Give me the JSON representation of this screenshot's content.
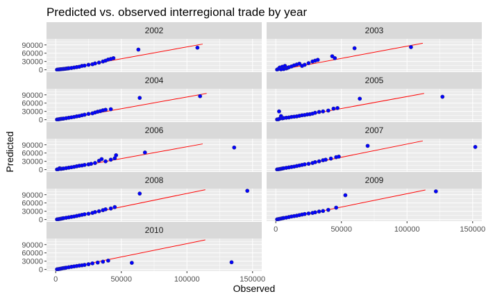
{
  "chart_data": {
    "type": "scatter",
    "title": "Predicted vs. observed interregional trade by year",
    "xlabel": "Observed",
    "ylabel": "Predicted",
    "x_ticks": [
      0,
      50000,
      100000,
      150000
    ],
    "x_tick_labels": [
      "0",
      "50000",
      "100000",
      "150000"
    ],
    "y_ticks": [
      0,
      30000,
      60000,
      90000
    ],
    "y_tick_labels": [
      "0",
      "30000",
      "60000",
      "90000"
    ],
    "xlim": [
      -7000,
      157000
    ],
    "ylim": [
      -6000,
      112000
    ],
    "grid": true,
    "colors": {
      "point_fill": "#0000ff",
      "point_stroke": "#2b2b8a",
      "fit_line": "#ff0000",
      "strip_bg": "#d9d9d9",
      "panel_bg": "#ebebeb",
      "grid": "#ffffff",
      "text": "#000000",
      "tick_text": "#4d4d4d"
    },
    "panels": [
      {
        "label": "2002",
        "fit": [
          [
            0,
            -3000
          ],
          [
            112000,
            93000
          ]
        ],
        "points": [
          [
            1000,
            300
          ],
          [
            2000,
            800
          ],
          [
            3000,
            1500
          ],
          [
            4000,
            2000
          ],
          [
            5000,
            2500
          ],
          [
            6000,
            3000
          ],
          [
            7000,
            3500
          ],
          [
            8000,
            4200
          ],
          [
            9000,
            4800
          ],
          [
            10000,
            5500
          ],
          [
            12000,
            6500
          ],
          [
            14000,
            8000
          ],
          [
            16000,
            9500
          ],
          [
            18000,
            11000
          ],
          [
            20000,
            14000
          ],
          [
            22000,
            15000
          ],
          [
            25000,
            18000
          ],
          [
            28000,
            20000
          ],
          [
            30000,
            23000
          ],
          [
            33000,
            26000
          ],
          [
            36000,
            30000
          ],
          [
            38000,
            33000
          ],
          [
            40000,
            37000
          ],
          [
            42000,
            39000
          ],
          [
            44000,
            42000
          ],
          [
            63000,
            73000
          ],
          [
            108000,
            80000
          ]
        ]
      },
      {
        "label": "2003",
        "fit": [
          [
            0,
            -3000
          ],
          [
            112000,
            96000
          ]
        ],
        "points": [
          [
            1000,
            500
          ],
          [
            2000,
            3000
          ],
          [
            3000,
            8000
          ],
          [
            4000,
            1500
          ],
          [
            5000,
            11000
          ],
          [
            6000,
            2500
          ],
          [
            7000,
            14000
          ],
          [
            8000,
            5000
          ],
          [
            9000,
            7000
          ],
          [
            10000,
            9000
          ],
          [
            12000,
            12000
          ],
          [
            14000,
            16000
          ],
          [
            16000,
            19000
          ],
          [
            18000,
            22000
          ],
          [
            20000,
            14000
          ],
          [
            22000,
            18000
          ],
          [
            25000,
            24000
          ],
          [
            28000,
            30000
          ],
          [
            30000,
            33000
          ],
          [
            32000,
            36000
          ],
          [
            43000,
            49000
          ],
          [
            45000,
            42000
          ],
          [
            60000,
            78000
          ],
          [
            103000,
            82000
          ]
        ]
      },
      {
        "label": "2004",
        "fit": [
          [
            0,
            -3000
          ],
          [
            115000,
            95000
          ]
        ],
        "points": [
          [
            1000,
            500
          ],
          [
            2000,
            1000
          ],
          [
            3000,
            2000
          ],
          [
            4000,
            3000
          ],
          [
            5000,
            3500
          ],
          [
            6000,
            4000
          ],
          [
            8000,
            5500
          ],
          [
            10000,
            7000
          ],
          [
            12000,
            8500
          ],
          [
            14000,
            10000
          ],
          [
            16000,
            12000
          ],
          [
            18000,
            13500
          ],
          [
            20000,
            16000
          ],
          [
            22000,
            18000
          ],
          [
            25000,
            21000
          ],
          [
            28000,
            23000
          ],
          [
            30000,
            26000
          ],
          [
            32000,
            29000
          ],
          [
            34000,
            31000
          ],
          [
            36000,
            34000
          ],
          [
            38000,
            36000
          ],
          [
            42000,
            38000
          ],
          [
            64000,
            79000
          ],
          [
            110000,
            85000
          ]
        ]
      },
      {
        "label": "2005",
        "fit": [
          [
            0,
            -3000
          ],
          [
            113000,
            95000
          ]
        ],
        "points": [
          [
            1000,
            800
          ],
          [
            2000,
            1500
          ],
          [
            2500,
            30000
          ],
          [
            3000,
            4000
          ],
          [
            4000,
            13000
          ],
          [
            5000,
            5000
          ],
          [
            6000,
            6000
          ],
          [
            8000,
            7000
          ],
          [
            10000,
            8000
          ],
          [
            12000,
            10000
          ],
          [
            14000,
            11000
          ],
          [
            16000,
            12000
          ],
          [
            18000,
            14000
          ],
          [
            20000,
            16000
          ],
          [
            22000,
            17000
          ],
          [
            24000,
            19000
          ],
          [
            26000,
            20000
          ],
          [
            28000,
            22000
          ],
          [
            30000,
            25000
          ],
          [
            33000,
            28000
          ],
          [
            36000,
            30000
          ],
          [
            40000,
            33000
          ],
          [
            44000,
            40000
          ],
          [
            47000,
            42000
          ],
          [
            64000,
            76000
          ],
          [
            127000,
            83000
          ]
        ]
      },
      {
        "label": "2006",
        "fit": [
          [
            0,
            -3000
          ],
          [
            112000,
            93000
          ]
        ],
        "points": [
          [
            1000,
            600
          ],
          [
            2000,
            1500
          ],
          [
            3000,
            5000
          ],
          [
            4000,
            2500
          ],
          [
            5000,
            3500
          ],
          [
            6000,
            4000
          ],
          [
            8000,
            5500
          ],
          [
            10000,
            7000
          ],
          [
            12000,
            8500
          ],
          [
            14000,
            10000
          ],
          [
            16000,
            12000
          ],
          [
            18000,
            14000
          ],
          [
            20000,
            15000
          ],
          [
            22000,
            17000
          ],
          [
            25000,
            19000
          ],
          [
            27000,
            21000
          ],
          [
            30000,
            24000
          ],
          [
            33000,
            32000
          ],
          [
            35000,
            38000
          ],
          [
            38000,
            30000
          ],
          [
            42000,
            36000
          ],
          [
            45000,
            41000
          ],
          [
            46000,
            52000
          ],
          [
            68000,
            62000
          ],
          [
            136000,
            80000
          ]
        ]
      },
      {
        "label": "2007",
        "fit": [
          [
            0,
            -3000
          ],
          [
            112000,
            104000
          ]
        ],
        "points": [
          [
            1000,
            600
          ],
          [
            2000,
            1200
          ],
          [
            3000,
            2000
          ],
          [
            4000,
            3000
          ],
          [
            5000,
            4000
          ],
          [
            6000,
            5000
          ],
          [
            8000,
            6500
          ],
          [
            10000,
            8000
          ],
          [
            12000,
            9500
          ],
          [
            14000,
            11000
          ],
          [
            16000,
            13000
          ],
          [
            18000,
            15000
          ],
          [
            20000,
            17000
          ],
          [
            22000,
            19000
          ],
          [
            25000,
            21000
          ],
          [
            28000,
            24000
          ],
          [
            30000,
            27000
          ],
          [
            33000,
            30000
          ],
          [
            36000,
            34000
          ],
          [
            38000,
            36000
          ],
          [
            42000,
            40000
          ],
          [
            46000,
            45000
          ],
          [
            48000,
            47000
          ],
          [
            70000,
            86000
          ],
          [
            152000,
            82000
          ]
        ]
      },
      {
        "label": "2008",
        "fit": [
          [
            0,
            -3000
          ],
          [
            114000,
            108000
          ]
        ],
        "points": [
          [
            1000,
            600
          ],
          [
            2000,
            1200
          ],
          [
            3000,
            2000
          ],
          [
            4000,
            3000
          ],
          [
            5000,
            4000
          ],
          [
            6000,
            5000
          ],
          [
            8000,
            6500
          ],
          [
            10000,
            8000
          ],
          [
            12000,
            9500
          ],
          [
            14000,
            11000
          ],
          [
            16000,
            13000
          ],
          [
            18000,
            15000
          ],
          [
            20000,
            17000
          ],
          [
            22000,
            19000
          ],
          [
            25000,
            21000
          ],
          [
            28000,
            24000
          ],
          [
            30000,
            27000
          ],
          [
            33000,
            30000
          ],
          [
            36000,
            34000
          ],
          [
            38000,
            37000
          ],
          [
            42000,
            40000
          ],
          [
            45000,
            45000
          ],
          [
            64000,
            94000
          ],
          [
            146000,
            104000
          ]
        ]
      },
      {
        "label": "2009",
        "fit": [
          [
            0,
            -3000
          ],
          [
            114000,
            107000
          ]
        ],
        "points": [
          [
            1000,
            600
          ],
          [
            2000,
            1500
          ],
          [
            3000,
            2500
          ],
          [
            4000,
            3500
          ],
          [
            5000,
            4500
          ],
          [
            6000,
            5500
          ],
          [
            8000,
            7000
          ],
          [
            10000,
            9000
          ],
          [
            12000,
            11000
          ],
          [
            14000,
            12500
          ],
          [
            16000,
            14000
          ],
          [
            18000,
            16000
          ],
          [
            20000,
            18000
          ],
          [
            22000,
            20000
          ],
          [
            25000,
            22000
          ],
          [
            28000,
            24000
          ],
          [
            30000,
            26000
          ],
          [
            33000,
            29000
          ],
          [
            36000,
            31000
          ],
          [
            40000,
            35000
          ],
          [
            46000,
            43000
          ],
          [
            53000,
            88000
          ],
          [
            122000,
            102000
          ]
        ]
      },
      {
        "label": "2010",
        "fit": [
          [
            0,
            -3000
          ],
          [
            114000,
            107000
          ]
        ],
        "points": [
          [
            1000,
            500
          ],
          [
            2000,
            1200
          ],
          [
            3000,
            2000
          ],
          [
            4000,
            3000
          ],
          [
            5000,
            4000
          ],
          [
            6000,
            5000
          ],
          [
            7000,
            5500
          ],
          [
            8000,
            6500
          ],
          [
            10000,
            8000
          ],
          [
            12000,
            9500
          ],
          [
            14000,
            11000
          ],
          [
            16000,
            12500
          ],
          [
            18000,
            14000
          ],
          [
            20000,
            15000
          ],
          [
            22000,
            16500
          ],
          [
            25000,
            19000
          ],
          [
            28000,
            22000
          ],
          [
            32000,
            25000
          ],
          [
            36000,
            28000
          ],
          [
            40000,
            32000
          ],
          [
            58000,
            24000
          ],
          [
            134000,
            26000
          ]
        ]
      }
    ]
  }
}
